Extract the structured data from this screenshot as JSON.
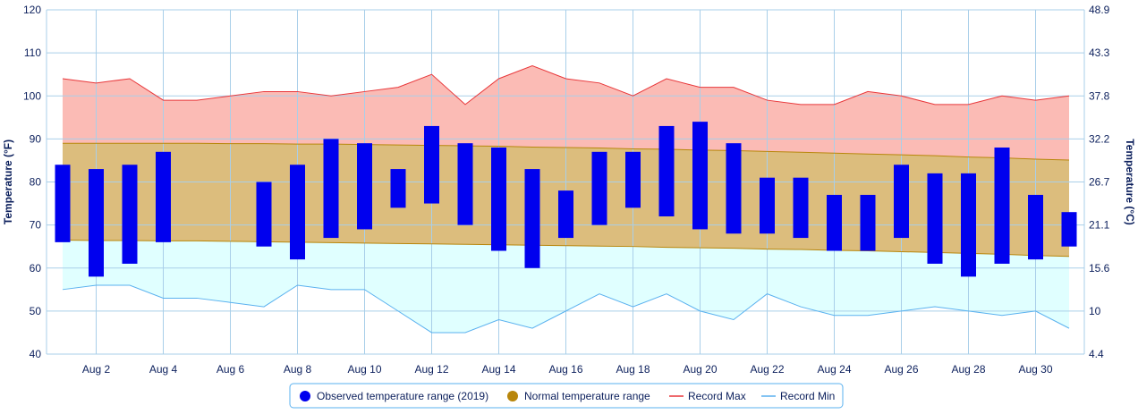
{
  "chart_data": {
    "type": "bar",
    "title": "",
    "ylabel_left": "Temperature (°F)",
    "ylabel_right": "Temperature (°C)",
    "ylim": [
      40,
      120
    ],
    "y_ticks_left": [
      "40",
      "50",
      "60",
      "70",
      "80",
      "90",
      "100",
      "110",
      "120"
    ],
    "y_ticks_right": [
      "4.4",
      "10",
      "15.6",
      "21.1",
      "26.7",
      "32.2",
      "37.8",
      "43.3",
      "48.9"
    ],
    "x_days": [
      1,
      2,
      3,
      4,
      5,
      6,
      7,
      8,
      9,
      10,
      11,
      12,
      13,
      14,
      15,
      16,
      17,
      18,
      19,
      20,
      21,
      22,
      23,
      24,
      25,
      26,
      27,
      28,
      29,
      30,
      31
    ],
    "x_tick_labels": [
      "Aug 2",
      "Aug 4",
      "Aug 6",
      "Aug 8",
      "Aug 10",
      "Aug 12",
      "Aug 14",
      "Aug 16",
      "Aug 18",
      "Aug 20",
      "Aug 22",
      "Aug 24",
      "Aug 26",
      "Aug 28",
      "Aug 30"
    ],
    "x_tick_days": [
      2,
      4,
      6,
      8,
      10,
      12,
      14,
      16,
      18,
      20,
      22,
      24,
      26,
      28,
      30
    ],
    "series": [
      {
        "name": "Observed temperature range (2019)",
        "kind": "range-bar",
        "color": "#0000ee",
        "low": [
          66,
          58,
          61,
          66,
          null,
          null,
          65,
          62,
          67,
          69,
          74,
          75,
          70,
          64,
          60,
          67,
          70,
          74,
          72,
          69,
          68,
          68,
          67,
          64,
          64,
          67,
          61,
          58,
          61,
          62,
          65
        ],
        "high": [
          84,
          83,
          84,
          87,
          null,
          null,
          80,
          84,
          90,
          89,
          83,
          93,
          89,
          88,
          83,
          78,
          87,
          87,
          93,
          94,
          89,
          81,
          81,
          77,
          77,
          84,
          82,
          82,
          88,
          77,
          73
        ]
      },
      {
        "name": "Normal temperature range",
        "kind": "range-area",
        "color": "#b8860b",
        "fill": "#dcbd7d",
        "low": [
          66.5,
          66.4,
          66.4,
          66.3,
          66.3,
          66.2,
          66.1,
          66,
          65.9,
          65.8,
          65.7,
          65.6,
          65.5,
          65.4,
          65.3,
          65.2,
          65.1,
          65,
          64.8,
          64.7,
          64.6,
          64.4,
          64.3,
          64.1,
          64,
          63.8,
          63.6,
          63.4,
          63.2,
          62.9,
          62.7
        ],
        "high": [
          89,
          89,
          89,
          89,
          89,
          88.9,
          88.9,
          88.8,
          88.8,
          88.7,
          88.6,
          88.5,
          88.4,
          88.3,
          88.1,
          88,
          87.9,
          87.7,
          87.6,
          87.4,
          87.3,
          87.1,
          86.9,
          86.7,
          86.5,
          86.3,
          86.1,
          85.8,
          85.6,
          85.3,
          85.1
        ]
      },
      {
        "name": "Record Max",
        "kind": "line",
        "color": "#e8373a",
        "fill": "#fbbbb5",
        "values": [
          104,
          103,
          104,
          99,
          99,
          100,
          101,
          101,
          100,
          101,
          102,
          105,
          98,
          104,
          107,
          104,
          103,
          100,
          104,
          102,
          102,
          99,
          98,
          98,
          101,
          100,
          98,
          98,
          100,
          99,
          100
        ]
      },
      {
        "name": "Record Min",
        "kind": "line",
        "color": "#5ab1ef",
        "fill": "#e0ffff",
        "values": [
          55,
          56,
          56,
          53,
          53,
          52,
          51,
          56,
          55,
          55,
          50,
          45,
          45,
          48,
          46,
          50,
          54,
          51,
          54,
          50,
          48,
          54,
          51,
          49,
          49,
          50,
          51,
          50,
          49,
          50,
          46
        ]
      }
    ],
    "grid": true,
    "legend_position": "bottom"
  },
  "legend": {
    "items": [
      {
        "label": "Observed temperature range (2019)",
        "symbol": "circle",
        "color": "#0000ee"
      },
      {
        "label": "Normal temperature range",
        "symbol": "circle",
        "color": "#b8860b"
      },
      {
        "label": "Record Max",
        "symbol": "line",
        "color": "#e8373a"
      },
      {
        "label": "Record Min",
        "symbol": "line",
        "color": "#5ab1ef"
      }
    ]
  }
}
